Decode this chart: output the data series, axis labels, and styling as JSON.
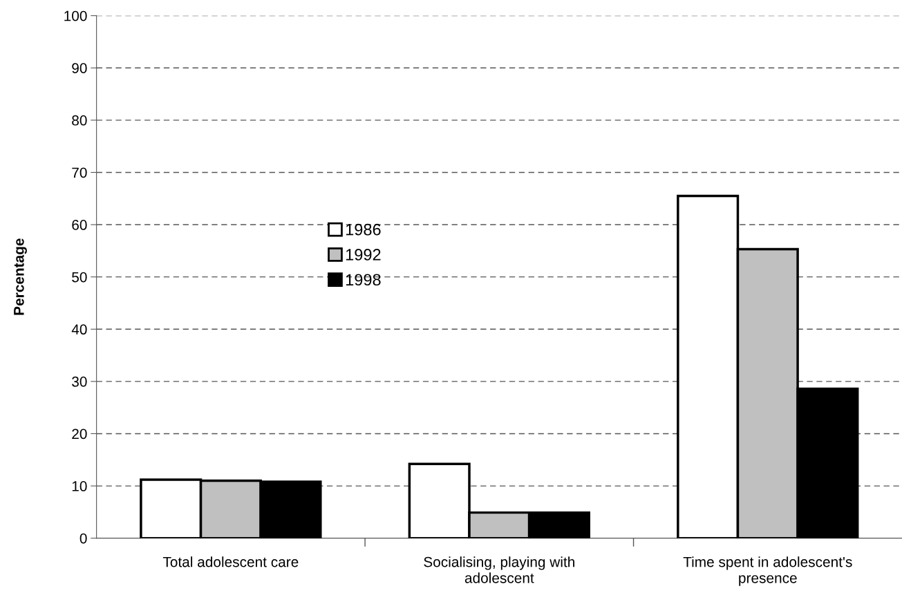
{
  "chart_data": {
    "type": "bar",
    "ylabel": "Percentage",
    "categories": [
      "Total adolescent care",
      "Socialising, playing with adolescent",
      "Time spent in adolescent's presence"
    ],
    "series": [
      {
        "name": "1986",
        "color": "#ffffff",
        "values": [
          11.2,
          14.2,
          65.5
        ]
      },
      {
        "name": "1992",
        "color": "#c0c0c0",
        "values": [
          11.0,
          4.9,
          55.3
        ]
      },
      {
        "name": "1998",
        "color": "#000000",
        "values": [
          10.8,
          4.9,
          28.6
        ]
      }
    ],
    "ylim": [
      0,
      100
    ],
    "yticks": [
      0,
      10,
      20,
      30,
      40,
      50,
      60,
      70,
      80,
      90,
      100
    ],
    "grid": "y",
    "legend": "left"
  }
}
